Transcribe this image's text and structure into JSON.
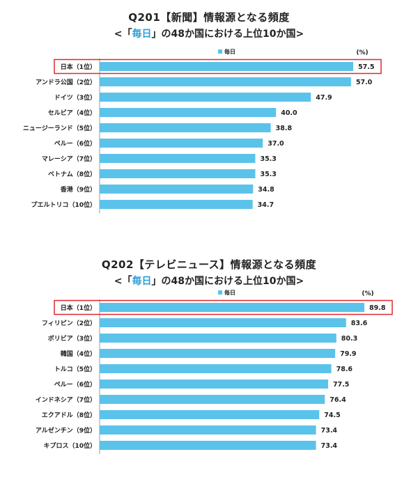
{
  "chart_data": [
    {
      "type": "bar",
      "orientation": "horizontal",
      "title": "Q201【新聞】情報源となる頻度",
      "subtitle_prefix": "<「",
      "subtitle_accent": "毎日",
      "subtitle_suffix": "」の48か国における上位10か国>",
      "unit": "(%)",
      "categories": [
        "日本（1位）",
        "アンドラ公国（2位）",
        "ドイツ（3位）",
        "セルビア（4位）",
        "ニュージーランド（5位）",
        "ペルー（6位）",
        "マレーシア（7位）",
        "ベトナム（8位）",
        "香港（9位）",
        "プエルトリコ（10位）"
      ],
      "series": [
        {
          "name": "毎日",
          "values": [
            57.5,
            57.0,
            47.9,
            40.0,
            38.8,
            37.0,
            35.3,
            35.3,
            34.8,
            34.7
          ]
        }
      ],
      "value_labels": [
        "57.5",
        "57.0",
        "47.9",
        "40.0",
        "38.8",
        "37.0",
        "35.3",
        "35.3",
        "34.8",
        "34.7"
      ],
      "xlim": [
        0,
        61
      ],
      "highlight_index": 0,
      "colors": {
        "bar": "#5bc3ea",
        "highlight": "#e0262d"
      },
      "legend_position": "top"
    },
    {
      "type": "bar",
      "orientation": "horizontal",
      "title": "Q202【テレビニュース】情報源となる頻度",
      "subtitle_prefix": "<「",
      "subtitle_accent": "毎日",
      "subtitle_suffix": "」の48か国における上位10か国>",
      "unit": "(%)",
      "categories": [
        "日本（1位）",
        "フィリピン（2位）",
        "ボリビア（3位）",
        "韓国（4位）",
        "トルコ（5位）",
        "ペルー（6位）",
        "インドネシア（7位）",
        "エクアドル（8位）",
        "アルゼンチン（9位）",
        "キプロス（10位）"
      ],
      "series": [
        {
          "name": "毎日",
          "values": [
            89.8,
            83.6,
            80.3,
            79.9,
            78.6,
            77.5,
            76.4,
            74.5,
            73.4,
            73.4
          ]
        }
      ],
      "value_labels": [
        "89.8",
        "83.6",
        "80.3",
        "79.9",
        "78.6",
        "77.5",
        "76.4",
        "74.5",
        "73.4",
        "73.4"
      ],
      "xlim": [
        0,
        94
      ],
      "highlight_index": 0,
      "colors": {
        "bar": "#5bc3ea",
        "highlight": "#e0262d"
      },
      "legend_position": "top"
    }
  ]
}
